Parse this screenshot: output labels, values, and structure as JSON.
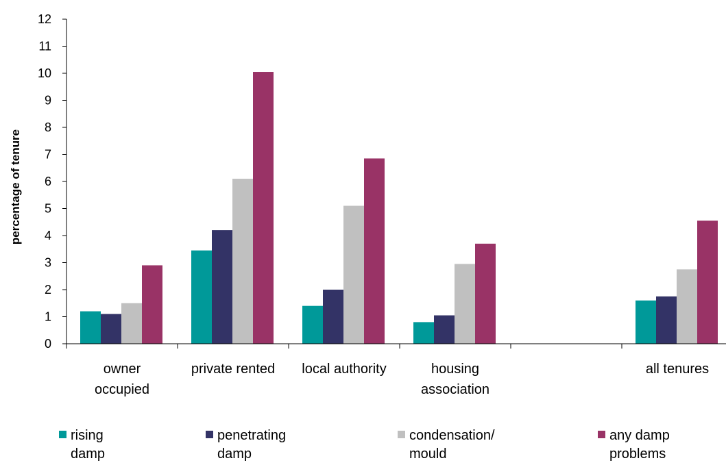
{
  "chart_data": {
    "type": "bar",
    "title": "",
    "xlabel": "",
    "ylabel": "percentage of tenure",
    "ylim": [
      0,
      12
    ],
    "yticks": [
      0,
      1,
      2,
      3,
      4,
      5,
      6,
      7,
      8,
      9,
      10,
      11,
      12
    ],
    "categories": [
      [
        "owner",
        "occupied"
      ],
      [
        "private rented"
      ],
      [
        "local authority"
      ],
      [
        "housing",
        "association"
      ],
      [
        ""
      ],
      [
        "all tenures"
      ]
    ],
    "series": [
      {
        "name": [
          "rising",
          "damp"
        ],
        "color": "#009999",
        "values": [
          1.2,
          3.45,
          1.4,
          0.8,
          null,
          1.6
        ]
      },
      {
        "name": [
          "penetrating",
          "damp"
        ],
        "color": "#333366",
        "values": [
          1.1,
          4.2,
          2.0,
          1.05,
          null,
          1.75
        ]
      },
      {
        "name": [
          "condensation/",
          "mould"
        ],
        "color": "#C0C0C0",
        "values": [
          1.5,
          6.1,
          5.1,
          2.95,
          null,
          2.75
        ]
      },
      {
        "name": [
          "any damp",
          "problems"
        ],
        "color": "#993366",
        "values": [
          2.9,
          10.05,
          6.85,
          3.7,
          null,
          4.55
        ]
      }
    ],
    "grid": false,
    "legend_position": "bottom"
  }
}
